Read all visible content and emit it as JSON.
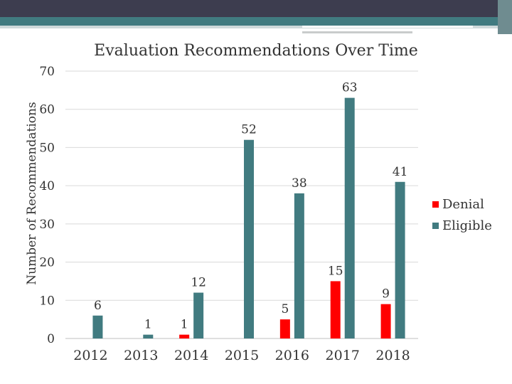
{
  "chart_data": {
    "type": "bar",
    "title": "Evaluation Recommendations Over Time",
    "xlabel": "",
    "ylabel": "Number of Recommendations",
    "categories": [
      "2012",
      "2013",
      "2014",
      "2015",
      "2016",
      "2017",
      "2018"
    ],
    "series": [
      {
        "name": "Denial",
        "color": "#ff0000",
        "values": [
          null,
          null,
          1,
          null,
          5,
          15,
          9
        ]
      },
      {
        "name": "Eligible",
        "color": "#417b80",
        "values": [
          6,
          1,
          12,
          52,
          38,
          63,
          41
        ]
      }
    ],
    "ylim": [
      0,
      70
    ],
    "yticks": [
      0,
      10,
      20,
      30,
      40,
      50,
      60,
      70
    ],
    "grid": true,
    "legend": "right"
  }
}
